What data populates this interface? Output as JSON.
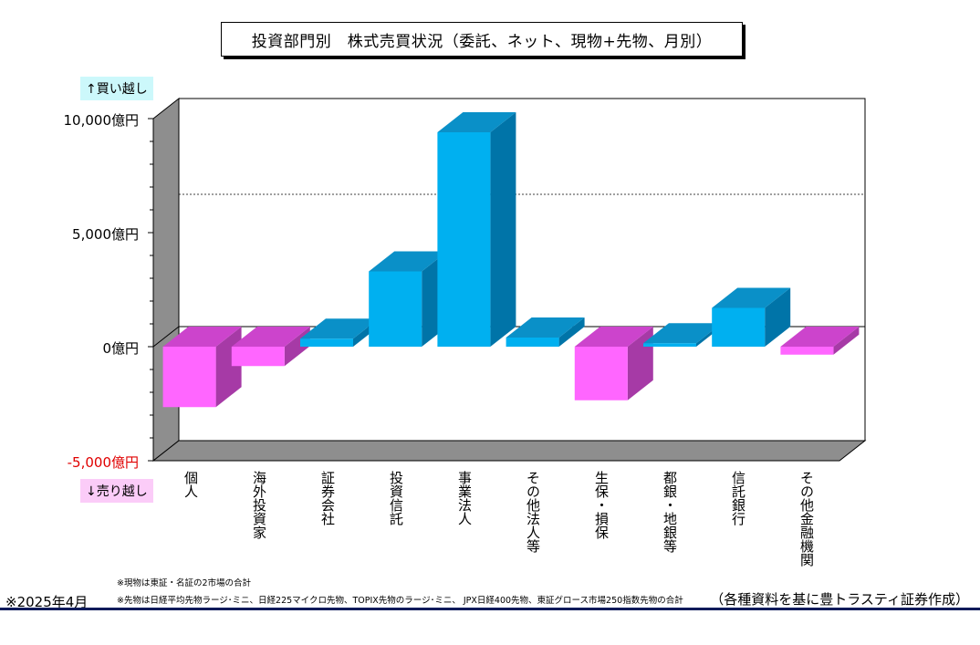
{
  "title": "投資部門別　株式売買状況（委託、ネット、現物+先物、月別）",
  "labels": {
    "buy": "↑買い越し",
    "sell": "↓売り越し"
  },
  "notes": {
    "note1": "※現物は東証・名証の2市場の合計",
    "note2": "※先物は日経平均先物ラージ･ミニ、日経225マイクロ先物、TOPIX先物のラージ･ミニ、 JPX日経400先物、東証グロース市場250指数先物の合計",
    "date": "※2025年4月",
    "source": "（各種資料を基に豊トラスティ証券作成）"
  },
  "colors": {
    "positive": "#00b0f0",
    "negative": "#ff66ff",
    "accent_rule": "#0a1a5a"
  },
  "chart_data": {
    "type": "bar",
    "title": "投資部門別　株式売買状況（委託、ネット、現物+先物、月別）",
    "categories": [
      "個人",
      "海外投資家",
      "証券会社",
      "投資信託",
      "事業法人",
      "その他法人等",
      "生保・損保",
      "都銀・地銀等",
      "信託銀行",
      "その他金融機関"
    ],
    "values": [
      -2650,
      -850,
      350,
      3300,
      9400,
      400,
      -2350,
      150,
      1700,
      -350
    ],
    "yticks": [
      "10,000億円",
      "5,000億円",
      "0億円",
      "-5,000億円"
    ],
    "ytick_values": [
      10000,
      5000,
      0,
      -5000
    ],
    "ylim": [
      -5000,
      10000
    ],
    "reference_line": 5800,
    "grid": false
  }
}
